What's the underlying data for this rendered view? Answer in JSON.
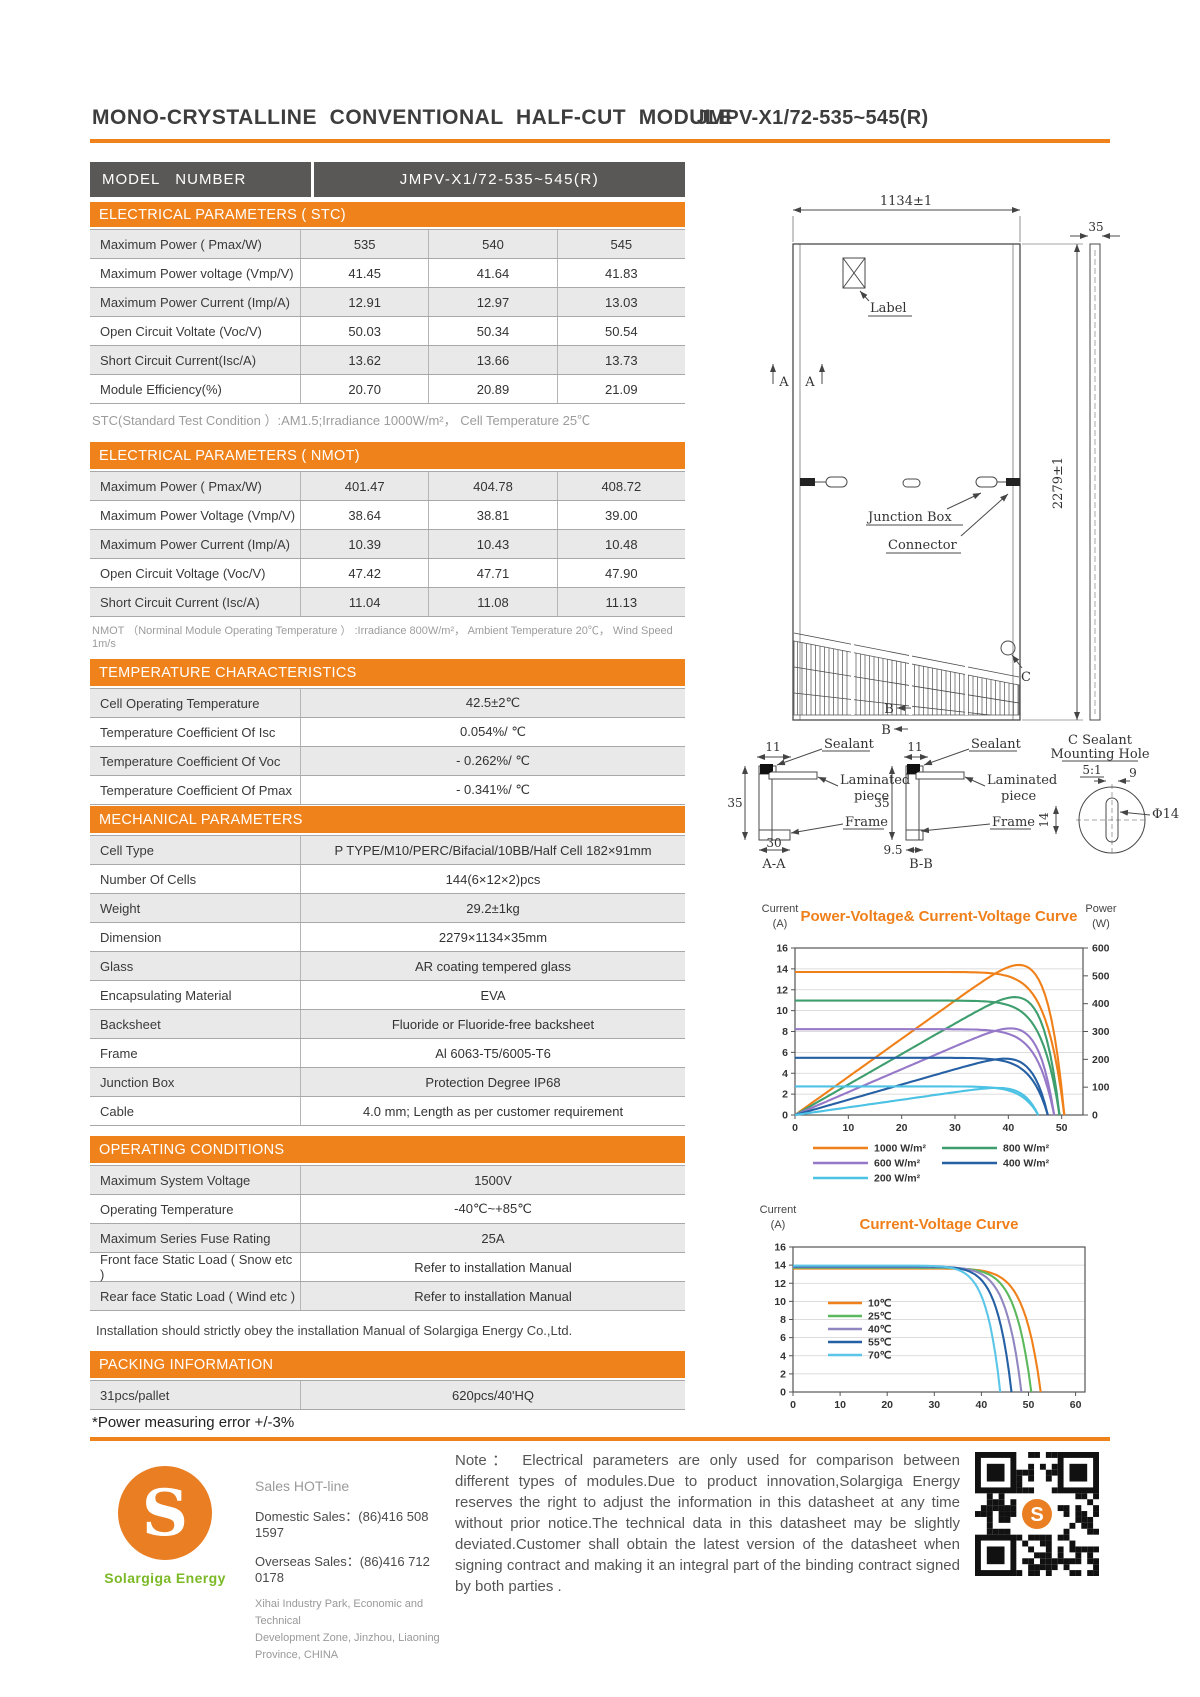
{
  "colors": {
    "accent": "#f0821c",
    "dark_header": "#5a5757",
    "row_alt": "#e9e9e9",
    "logo_orange": "#e97e23",
    "logo_green": "#7cb927"
  },
  "header": {
    "title": "MONO-CRYSTALLINE  CONVENTIONAL  HALF-CUT  MODULE",
    "model": "JMPV-X1/72-535~545(R)"
  },
  "model_row": {
    "label": "MODEL   NUMBER",
    "value": "JMPV-X1/72-535~545(R)"
  },
  "sections": {
    "stc": {
      "title": "ELECTRICAL PARAMETERS ( STC)",
      "rows": [
        [
          "Maximum Power ( Pmax/W)",
          "535",
          "540",
          "545"
        ],
        [
          "Maximum Power voltage (Vmp/V)",
          "41.45",
          "41.64",
          "41.83"
        ],
        [
          "Maximum Power Current (Imp/A)",
          "12.91",
          "12.97",
          "13.03"
        ],
        [
          "Open Circuit Voltate (Voc/V)",
          "50.03",
          "50.34",
          "50.54"
        ],
        [
          "Short Circuit Current(Isc/A)",
          "13.62",
          "13.66",
          "13.73"
        ],
        [
          "Module Efficiency(%)",
          "20.70",
          "20.89",
          "21.09"
        ]
      ],
      "note": "STC(Standard Test Condition ）:AM1.5;Irradiance 1000W/m²， Cell Temperature 25℃"
    },
    "nmot": {
      "title": "ELECTRICAL PARAMETERS ( NMOT)",
      "rows": [
        [
          "Maximum Power ( Pmax/W)",
          "401.47",
          "404.78",
          "408.72"
        ],
        [
          "Maximum Power Voltage (Vmp/V)",
          "38.64",
          "38.81",
          "39.00"
        ],
        [
          "Maximum Power Current (Imp/A)",
          "10.39",
          "10.43",
          "10.48"
        ],
        [
          "Open Circuit Voltage (Voc/V)",
          "47.42",
          "47.71",
          "47.90"
        ],
        [
          "Short Circuit Current (Isc/A)",
          "11.04",
          "11.08",
          "11.13"
        ]
      ],
      "note": "NMOT （Norminal Module Operating Temperature ） :Irradiance 800W/m²，  Ambient Temperature  20℃，  Wind Speed 1m/s"
    },
    "temperature": {
      "title": "TEMPERATURE CHARACTERISTICS",
      "rows": [
        [
          "Cell Operating Temperature",
          "42.5±2℃"
        ],
        [
          "Temperature Coefficient Of Isc",
          "0.054%/ ℃"
        ],
        [
          "Temperature Coefficient Of Voc",
          "- 0.262%/ ℃"
        ],
        [
          "Temperature Coefficient Of Pmax",
          "- 0.341%/ ℃"
        ]
      ]
    },
    "mechanical": {
      "title": "MECHANICAL PARAMETERS",
      "rows": [
        [
          "Cell Type",
          "P TYPE/M10/PERC/Bifacial/10BB/Half Cell 182×91mm"
        ],
        [
          "Number Of Cells",
          "144(6×12×2)pcs"
        ],
        [
          "Weight",
          "29.2±1kg"
        ],
        [
          "Dimension",
          "2279×1134×35mm"
        ],
        [
          "Glass",
          "AR coating tempered glass"
        ],
        [
          "Encapsulating Material",
          "EVA"
        ],
        [
          "Backsheet",
          "Fluoride or Fluoride-free backsheet"
        ],
        [
          "Frame",
          "Al 6063-T5/6005-T6"
        ],
        [
          "Junction Box",
          "Protection Degree IP68"
        ],
        [
          "Cable",
          "4.0 mm;  Length as per customer requirement"
        ]
      ]
    },
    "operating": {
      "title": "OPERATING CONDITIONS",
      "rows": [
        [
          "Maximum System Voltage",
          "1500V"
        ],
        [
          "Operating Temperature",
          "-40℃~+85℃"
        ],
        [
          "Maximum Series Fuse Rating",
          "25A"
        ],
        [
          "Front face Static Load ( Snow etc )",
          "Refer to installation  Manual"
        ],
        [
          "Rear face Static Load ( Wind etc )",
          "Refer to installation  Manual"
        ]
      ],
      "note": "Installation should strictly obey the installation Manual of Solargiga  Energy Co.,Ltd."
    },
    "packing": {
      "title": "PACKING INFORMATION",
      "rows": [
        [
          "31pcs/pallet",
          "620pcs/40'HQ"
        ]
      ],
      "note": "*Power measuring error  +/-3%"
    }
  },
  "drawing": {
    "dim_width": "1134±1",
    "dim_height": "2279±1",
    "dim_thickness": "35",
    "label": "Label",
    "junction_box": "Junction Box",
    "connector": "Connector",
    "marker_a": "A",
    "marker_b": "B",
    "marker_c": "C",
    "section_a": {
      "dim_top": "11",
      "sealant": "Sealant",
      "laminated_line1": "Laminated",
      "laminated_line2": "piece",
      "dim_height": "35",
      "frame": "Frame",
      "dim_bottom": "30",
      "name": "A-A"
    },
    "section_b": {
      "dim_top": "11",
      "sealant": "Sealant",
      "laminated_line1": "Laminated",
      "laminated_line2": "piece",
      "dim_height": "35",
      "frame": "Frame",
      "dim_bottom": "9.5",
      "name": "B-B"
    },
    "detail_c": {
      "title_line1": "C Sealant",
      "title_line2": "Mounting Hole",
      "scale": "5:1",
      "dim_top": "9",
      "dim_side": "14",
      "diameter": "Φ14"
    }
  },
  "chart_data": [
    {
      "type": "line",
      "title": "Power-Voltage& Current-Voltage Curve",
      "ylabel_left": [
        "Current",
        "(A)"
      ],
      "ylabel_right": [
        "Power",
        "(W)"
      ],
      "xlim": [
        0,
        54
      ],
      "x_ticks": [
        0,
        10,
        20,
        30,
        40,
        50
      ],
      "ylim_left": [
        0,
        16
      ],
      "y_step_left": 2,
      "ylim_right": [
        0,
        600
      ],
      "y_step_right": 100,
      "grid": "horizontal",
      "legend_position": "below",
      "series": [
        {
          "name": "1000 W/m²",
          "color": "#f08019",
          "isc": 13.7,
          "voc": 50.5,
          "pmax_w": 545
        },
        {
          "name": "800 W/m²",
          "color": "#3f9e6e",
          "isc": 10.96,
          "voc": 49.6,
          "pmax_w": 435
        },
        {
          "name": "600 W/m²",
          "color": "#9678c8",
          "isc": 8.22,
          "voc": 48.6,
          "pmax_w": 325
        },
        {
          "name": "400 W/m²",
          "color": "#2660a4",
          "isc": 5.48,
          "voc": 47.4,
          "pmax_w": 215
        },
        {
          "name": "200 W/m²",
          "color": "#4cc2e4",
          "isc": 2.74,
          "voc": 45.6,
          "pmax_w": 105
        }
      ]
    },
    {
      "type": "line",
      "title": "Current-Voltage Curve",
      "ylabel_left": [
        "Current",
        "(A)"
      ],
      "xlim": [
        0,
        62
      ],
      "x_ticks": [
        0,
        10,
        20,
        30,
        40,
        50,
        60
      ],
      "ylim_left": [
        0,
        16
      ],
      "y_step_left": 2,
      "grid": "horizontal",
      "legend_position": "inside",
      "series": [
        {
          "name": "10℃",
          "color": "#f08019",
          "isc": 13.62,
          "voc": 52.6
        },
        {
          "name": "25℃",
          "color": "#5cb85c",
          "isc": 13.7,
          "voc": 50.6
        },
        {
          "name": "40℃",
          "color": "#9187c0",
          "isc": 13.78,
          "voc": 48.5
        },
        {
          "name": "55℃",
          "color": "#2660a4",
          "isc": 13.86,
          "voc": 46.4
        },
        {
          "name": "70℃",
          "color": "#5bc6e8",
          "isc": 13.94,
          "voc": 44.0
        }
      ]
    }
  ],
  "footer": {
    "sales_title": "Sales HOT-line",
    "domestic": "Domestic Sales：(86)416 508 1597",
    "overseas": "Overseas Sales：(86)416 712 0178",
    "address": [
      "Xihai Industry Park, Economic and Technical",
      "Development  Zone, Jinzhou, Liaoning",
      "Province, CHINA"
    ],
    "logo_letter": "S",
    "logo_text": "Solargiga Energy",
    "note": "Note： Electrical parameters are only used for comparison between different types of modules.Due to product innovation,Solargiga Energy reserves the right to adjust the information in this datasheet at any time without prior notice.The technical data in this datasheet may be slightly deviated.Customer shall obtain the latest version of the datasheet when signing contract and making it an integral part of the binding contract signed by both parties ."
  }
}
